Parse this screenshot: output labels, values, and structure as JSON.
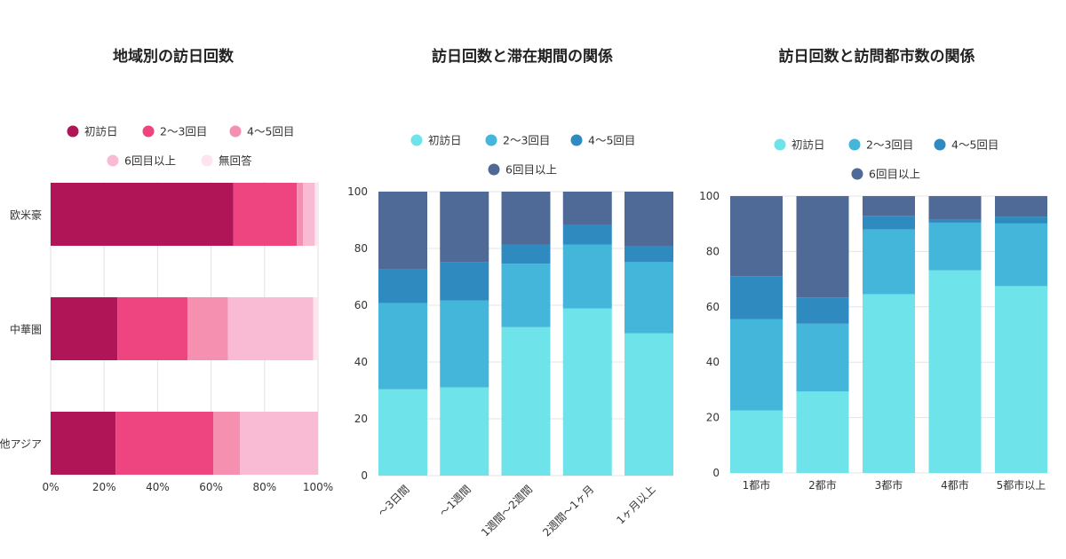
{
  "chart_data": [
    {
      "type": "bar",
      "orientation": "horizontal",
      "stacked": true,
      "title": "地域別の訪日回数",
      "categories": [
        "欧米豪",
        "中華圏",
        "その他アジア"
      ],
      "series": [
        {
          "name": "初訪日",
          "color": "#b01558",
          "values": [
            68.3,
            25.0,
            24.3
          ]
        },
        {
          "name": "2〜3回目",
          "color": "#ee4480",
          "values": [
            23.8,
            26.2,
            36.5
          ]
        },
        {
          "name": "4〜5回目",
          "color": "#f590b0",
          "values": [
            2.3,
            15.1,
            10.0
          ]
        },
        {
          "name": "6回目以上",
          "color": "#f9bad3",
          "values": [
            4.4,
            31.9,
            29.2
          ]
        },
        {
          "name": "無回答",
          "color": "#fde4ee",
          "values": [
            1.2,
            1.8,
            0.0
          ]
        }
      ],
      "xlim": [
        0,
        100
      ],
      "xticks": [
        "0%",
        "20%",
        "40%",
        "60%",
        "80%",
        "100%"
      ],
      "grid": true,
      "legend": "top"
    },
    {
      "type": "bar",
      "stacked": true,
      "title": "訪日回数と滞在期間の関係",
      "categories": [
        "〜3日間",
        "〜1週間",
        "1週間〜2週間",
        "2週間〜1ヶ月",
        "1ヶ月以上"
      ],
      "series": [
        {
          "name": "初訪日",
          "color": "#6fe3ea",
          "values": [
            30.4,
            31.1,
            52.3,
            58.9,
            50.1
          ]
        },
        {
          "name": "2〜3回目",
          "color": "#43b6d9",
          "values": [
            30.4,
            30.6,
            22.3,
            22.5,
            25.1
          ]
        },
        {
          "name": "4〜5回目",
          "color": "#2e8abf",
          "values": [
            12.0,
            13.5,
            6.8,
            6.9,
            5.6
          ]
        },
        {
          "name": "6回目以上",
          "color": "#4f6a97",
          "values": [
            27.2,
            24.8,
            18.6,
            11.7,
            19.2
          ]
        }
      ],
      "ylim": [
        0,
        100
      ],
      "yticks": [
        "0",
        "20",
        "40",
        "60",
        "80",
        "100"
      ],
      "grid": true,
      "legend": "top"
    },
    {
      "type": "bar",
      "stacked": true,
      "title": "訪日回数と訪問都市数の関係",
      "categories": [
        "1都市",
        "2都市",
        "3都市",
        "4都市",
        "5都市以上"
      ],
      "series": [
        {
          "name": "初訪日",
          "color": "#6fe3ea",
          "values": [
            22.6,
            29.4,
            64.6,
            73.2,
            67.5
          ]
        },
        {
          "name": "2〜3回目",
          "color": "#43b6d9",
          "values": [
            32.9,
            24.5,
            23.4,
            17.2,
            22.6
          ]
        },
        {
          "name": "4〜5回目",
          "color": "#2e8abf",
          "values": [
            15.6,
            9.5,
            4.9,
            1.0,
            2.5
          ]
        },
        {
          "name": "6回目以上",
          "color": "#4f6a97",
          "values": [
            28.9,
            36.6,
            7.1,
            8.6,
            7.4
          ]
        }
      ],
      "ylim": [
        0,
        100
      ],
      "yticks": [
        "0",
        "20",
        "40",
        "60",
        "80",
        "100"
      ],
      "grid": true,
      "legend": "top"
    }
  ]
}
